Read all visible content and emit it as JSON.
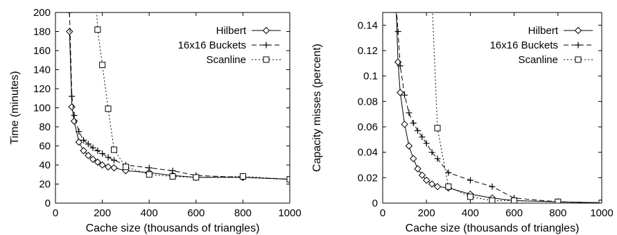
{
  "chart_data": [
    {
      "type": "line",
      "xlabel": "Cache size (thousands of triangles)",
      "ylabel": "Time (minutes)",
      "xlim": [
        0,
        1000
      ],
      "ylim": [
        0,
        200
      ],
      "xticks": [
        "0",
        "200",
        "400",
        "600",
        "800",
        "1000"
      ],
      "yticks": [
        "0",
        "20",
        "40",
        "60",
        "80",
        "100",
        "120",
        "140",
        "160",
        "180",
        "200"
      ],
      "grid": false,
      "legend_position": "top-right",
      "series": [
        {
          "name": "Hilbert",
          "marker": "diamond",
          "dash": "solid",
          "x": [
            60,
            70,
            80,
            100,
            120,
            140,
            160,
            180,
            200,
            225,
            250,
            300,
            400,
            500,
            600,
            800,
            1000
          ],
          "y": [
            180,
            101,
            86,
            64,
            55,
            50,
            46,
            43,
            40,
            38,
            37,
            34,
            32,
            29,
            27,
            27,
            25
          ]
        },
        {
          "name": "16x16 Buckets",
          "marker": "plus",
          "dash": "dash",
          "x": [
            60,
            70,
            80,
            100,
            120,
            140,
            160,
            180,
            200,
            225,
            250,
            300,
            400,
            500,
            600,
            800,
            1000
          ],
          "y": [
            200,
            112,
            92,
            75,
            66,
            62,
            58,
            55,
            52,
            48,
            45,
            40,
            37,
            34,
            29,
            27,
            25
          ]
        },
        {
          "name": "Scanline",
          "marker": "square",
          "dash": "dot",
          "x": [
            170,
            180,
            200,
            225,
            250,
            300,
            400,
            500,
            600,
            800,
            1000
          ],
          "y": [
            230,
            182,
            145,
            99,
            56,
            38,
            30,
            28,
            27,
            28,
            25
          ]
        }
      ]
    },
    {
      "type": "line",
      "xlabel": "Cache size (thousands of triangles)",
      "ylabel": "Capacity misses (percent)",
      "xlim": [
        0,
        1000
      ],
      "ylim": [
        0,
        0.15
      ],
      "xticks": [
        "0",
        "200",
        "400",
        "600",
        "800",
        "1000"
      ],
      "yticks": [
        "0",
        "0.02",
        "0.04",
        "0.06",
        "0.08",
        "0.1",
        "0.12",
        "0.14"
      ],
      "grid": false,
      "legend_position": "top-right",
      "series": [
        {
          "name": "Hilbert",
          "marker": "diamond",
          "dash": "solid",
          "x": [
            60,
            70,
            80,
            100,
            120,
            140,
            160,
            180,
            200,
            225,
            250,
            300,
            400,
            500,
            600,
            800,
            1000
          ],
          "y": [
            0.16,
            0.111,
            0.087,
            0.062,
            0.045,
            0.035,
            0.027,
            0.022,
            0.018,
            0.015,
            0.013,
            0.012,
            0.007,
            0.004,
            0.002,
            0.001,
            0.0003
          ]
        },
        {
          "name": "16x16 Buckets",
          "marker": "plus",
          "dash": "dash",
          "x": [
            60,
            70,
            80,
            100,
            120,
            140,
            160,
            180,
            200,
            225,
            250,
            300,
            400,
            500,
            600,
            800,
            1000
          ],
          "y": [
            0.16,
            0.135,
            0.108,
            0.085,
            0.071,
            0.063,
            0.057,
            0.052,
            0.047,
            0.04,
            0.035,
            0.024,
            0.018,
            0.013,
            0.004,
            0.001,
            0.0003
          ]
        },
        {
          "name": "Scanline",
          "marker": "square",
          "dash": "dot",
          "x": [
            225,
            250,
            300,
            400,
            500,
            600,
            800,
            1000
          ],
          "y": [
            0.16,
            0.059,
            0.013,
            0.005,
            0.002,
            0.002,
            0.001,
            0.0002
          ]
        }
      ]
    }
  ]
}
